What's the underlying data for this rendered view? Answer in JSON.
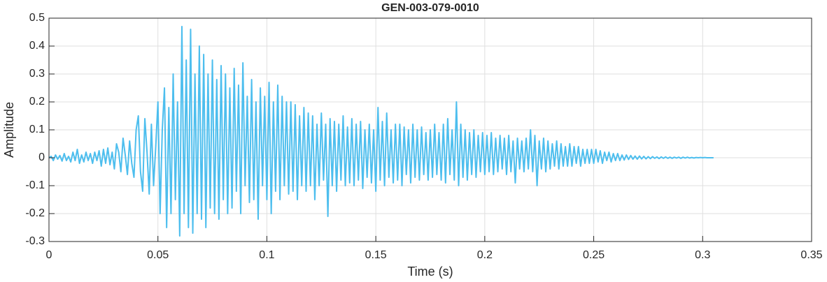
{
  "chart_data": {
    "type": "line",
    "title": "GEN-003-079-0010",
    "x_label": "Time (s)",
    "y_label": "Amplitude",
    "color": "#4dbeee",
    "grid": true,
    "xlim": [
      0,
      0.35
    ],
    "xticks": [
      0,
      0.05,
      0.1,
      0.15,
      0.2,
      0.25,
      0.3,
      0.35
    ],
    "ylim": [
      -0.3,
      0.5
    ],
    "yticks": [
      -0.3,
      -0.2,
      -0.1,
      0,
      0.1,
      0.2,
      0.3,
      0.4,
      0.5
    ],
    "x": [
      0,
      0.001,
      0.002,
      0.003,
      0.004,
      0.005,
      0.006,
      0.007,
      0.008,
      0.009,
      0.01,
      0.011,
      0.012,
      0.013,
      0.014,
      0.015,
      0.016,
      0.017,
      0.018,
      0.019,
      0.02,
      0.021,
      0.022,
      0.023,
      0.024,
      0.025,
      0.026,
      0.027,
      0.028,
      0.029,
      0.03,
      0.031,
      0.032,
      0.033,
      0.034,
      0.035,
      0.036,
      0.037,
      0.038,
      0.039,
      0.04,
      0.041,
      0.042,
      0.043,
      0.044,
      0.045,
      0.046,
      0.047,
      0.048,
      0.049,
      0.05,
      0.051,
      0.052,
      0.053,
      0.054,
      0.055,
      0.056,
      0.057,
      0.058,
      0.059,
      0.06,
      0.061,
      0.062,
      0.063,
      0.064,
      0.065,
      0.066,
      0.067,
      0.068,
      0.069,
      0.07,
      0.071,
      0.072,
      0.073,
      0.074,
      0.075,
      0.076,
      0.077,
      0.078,
      0.079,
      0.08,
      0.081,
      0.082,
      0.083,
      0.084,
      0.085,
      0.086,
      0.087,
      0.088,
      0.089,
      0.09,
      0.091,
      0.092,
      0.093,
      0.094,
      0.095,
      0.096,
      0.097,
      0.098,
      0.099,
      0.1,
      0.101,
      0.102,
      0.103,
      0.104,
      0.105,
      0.106,
      0.107,
      0.108,
      0.109,
      0.11,
      0.111,
      0.112,
      0.113,
      0.114,
      0.115,
      0.116,
      0.117,
      0.118,
      0.119,
      0.12,
      0.121,
      0.122,
      0.123,
      0.124,
      0.125,
      0.126,
      0.127,
      0.128,
      0.129,
      0.13,
      0.131,
      0.132,
      0.133,
      0.134,
      0.135,
      0.136,
      0.137,
      0.138,
      0.139,
      0.14,
      0.141,
      0.142,
      0.143,
      0.144,
      0.145,
      0.146,
      0.147,
      0.148,
      0.149,
      0.15,
      0.151,
      0.152,
      0.153,
      0.154,
      0.155,
      0.156,
      0.157,
      0.158,
      0.159,
      0.16,
      0.161,
      0.162,
      0.163,
      0.164,
      0.165,
      0.166,
      0.167,
      0.168,
      0.169,
      0.17,
      0.171,
      0.172,
      0.173,
      0.174,
      0.175,
      0.176,
      0.177,
      0.178,
      0.179,
      0.18,
      0.181,
      0.182,
      0.183,
      0.184,
      0.185,
      0.186,
      0.187,
      0.188,
      0.189,
      0.19,
      0.191,
      0.192,
      0.193,
      0.194,
      0.195,
      0.196,
      0.197,
      0.198,
      0.199,
      0.2,
      0.201,
      0.202,
      0.203,
      0.204,
      0.205,
      0.206,
      0.207,
      0.208,
      0.209,
      0.21,
      0.211,
      0.212,
      0.213,
      0.214,
      0.215,
      0.216,
      0.217,
      0.218,
      0.219,
      0.22,
      0.221,
      0.222,
      0.223,
      0.224,
      0.225,
      0.226,
      0.227,
      0.228,
      0.229,
      0.23,
      0.231,
      0.232,
      0.233,
      0.234,
      0.235,
      0.236,
      0.237,
      0.238,
      0.239,
      0.24,
      0.241,
      0.242,
      0.243,
      0.244,
      0.245,
      0.246,
      0.247,
      0.248,
      0.249,
      0.25,
      0.251,
      0.252,
      0.253,
      0.254,
      0.255,
      0.256,
      0.257,
      0.258,
      0.259,
      0.26,
      0.261,
      0.262,
      0.263,
      0.264,
      0.265,
      0.266,
      0.267,
      0.268,
      0.269,
      0.27,
      0.271,
      0.272,
      0.273,
      0.274,
      0.275,
      0.276,
      0.277,
      0.278,
      0.279,
      0.28,
      0.281,
      0.282,
      0.283,
      0.284,
      0.285,
      0.286,
      0.287,
      0.288,
      0.289,
      0.29,
      0.291,
      0.292,
      0.293,
      0.294,
      0.295,
      0.296,
      0.297,
      0.298,
      0.299,
      0.3,
      0.301,
      0.302,
      0.303,
      0.304,
      0.305
    ],
    "values": [
      0,
      0.005,
      -0.01,
      0.01,
      -0.005,
      0.008,
      -0.012,
      0.015,
      -0.01,
      0.005,
      -0.015,
      0.02,
      -0.01,
      0.03,
      -0.02,
      0.01,
      -0.015,
      0.02,
      -0.01,
      0.015,
      -0.02,
      0.02,
      -0.01,
      0.025,
      -0.03,
      0.03,
      -0.02,
      0.035,
      -0.025,
      0.02,
      -0.04,
      0.05,
      0.02,
      -0.05,
      0.07,
      0.01,
      -0.06,
      0.06,
      -0.02,
      -0.07,
      0.1,
      0.15,
      -0.05,
      -0.12,
      0.14,
      0.02,
      -0.13,
      0.12,
      -0.1,
      0.04,
      0.2,
      -0.2,
      0.1,
      0.25,
      -0.25,
      0.18,
      -0.2,
      0.3,
      -0.15,
      0.2,
      -0.28,
      0.47,
      -0.2,
      0.35,
      -0.25,
      0.46,
      -0.27,
      0.3,
      -0.2,
      0.4,
      -0.22,
      0.37,
      -0.25,
      0.3,
      -0.18,
      0.35,
      -0.2,
      0.28,
      -0.22,
      0.33,
      -0.15,
      0.3,
      -0.2,
      0.25,
      -0.18,
      0.32,
      -0.12,
      0.26,
      -0.2,
      0.34,
      -0.1,
      0.22,
      -0.16,
      0.28,
      -0.15,
      0.2,
      -0.22,
      0.25,
      -0.1,
      0.22,
      -0.15,
      0.27,
      -0.2,
      0.2,
      -0.12,
      0.26,
      -0.15,
      0.22,
      -0.1,
      0.2,
      -0.13,
      0.2,
      -0.12,
      0.19,
      -0.15,
      0.15,
      -0.1,
      0.18,
      -0.12,
      0.16,
      -0.1,
      0.15,
      -0.15,
      0.12,
      -0.1,
      0.16,
      -0.08,
      0.12,
      -0.21,
      0.14,
      -0.1,
      0.13,
      -0.12,
      0.12,
      -0.08,
      0.15,
      -0.1,
      0.11,
      -0.09,
      0.14,
      -0.1,
      0.12,
      -0.08,
      0.13,
      -0.11,
      0.1,
      -0.07,
      0.12,
      -0.09,
      0.1,
      -0.12,
      0.18,
      -0.08,
      0.13,
      -0.1,
      0.16,
      -0.07,
      0.1,
      -0.09,
      0.12,
      -0.08,
      0.12,
      -0.1,
      0.11,
      -0.06,
      0.1,
      -0.09,
      0.12,
      -0.07,
      0.1,
      -0.08,
      0.11,
      -0.06,
      0.09,
      -0.08,
      0.1,
      -0.07,
      0.12,
      -0.06,
      0.09,
      -0.08,
      0.12,
      -0.09,
      0.14,
      -0.06,
      0.1,
      -0.08,
      0.2,
      -0.1,
      0.12,
      -0.07,
      0.1,
      -0.08,
      0.09,
      -0.06,
      0.1,
      -0.07,
      0.08,
      -0.05,
      0.09,
      -0.06,
      0.08,
      -0.05,
      0.09,
      -0.06,
      0.07,
      -0.05,
      0.08,
      -0.04,
      0.07,
      -0.06,
      0.08,
      -0.05,
      0.06,
      -0.09,
      0.07,
      -0.04,
      0.06,
      -0.05,
      0.07,
      -0.04,
      0.1,
      -0.05,
      0.08,
      -0.1,
      0.06,
      -0.04,
      0.07,
      -0.05,
      0.06,
      -0.04,
      0.05,
      -0.03,
      0.06,
      -0.04,
      0.05,
      -0.03,
      0.04,
      -0.03,
      0.05,
      -0.03,
      0.04,
      -0.02,
      0.04,
      -0.03,
      0.03,
      -0.02,
      0.03,
      -0.02,
      0.03,
      -0.02,
      0.03,
      -0.015,
      0.025,
      -0.02,
      0.02,
      -0.01,
      0.02,
      -0.015,
      0.015,
      -0.01,
      0.015,
      -0.01,
      0.01,
      -0.008,
      0.01,
      -0.006,
      0.008,
      -0.005,
      0.006,
      -0.005,
      0.006,
      -0.004,
      0.005,
      -0.004,
      0.004,
      -0.003,
      0.004,
      -0.002,
      0.003,
      -0.003,
      0.003,
      -0.002,
      0.003,
      -0.002,
      0.002,
      -0.002,
      0.002,
      -0.001,
      0.002,
      -0.002,
      0.002,
      -0.001,
      0.002,
      -0.001,
      0.001,
      -0.001,
      0.001,
      0,
      0.001,
      0,
      0.001,
      0,
      0,
      0,
      0
    ]
  }
}
